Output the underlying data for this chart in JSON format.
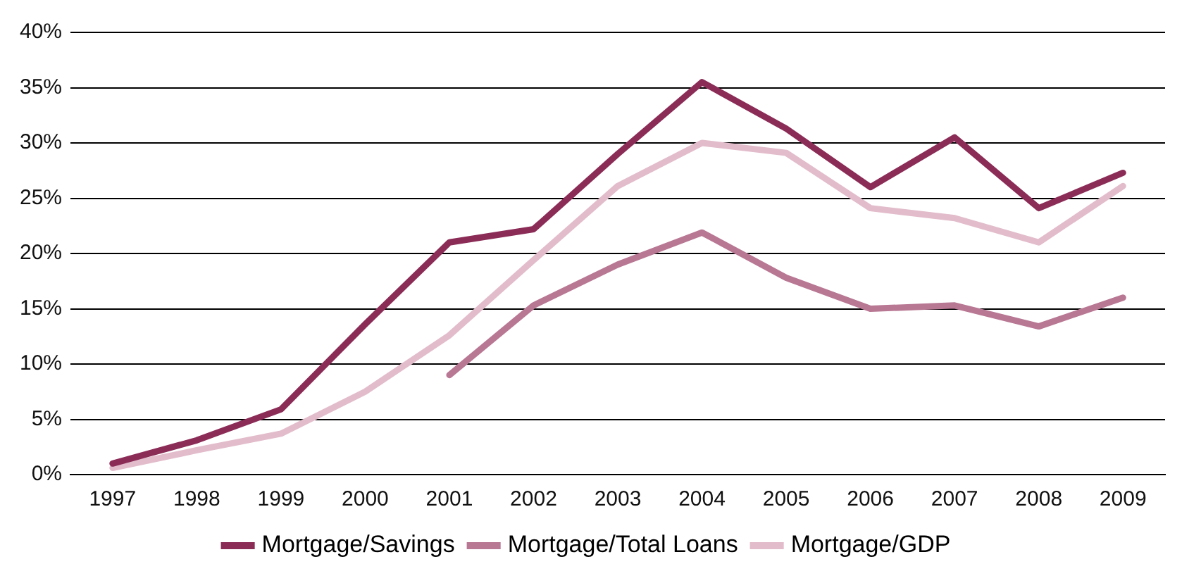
{
  "chart_data": {
    "type": "line",
    "categories": [
      "1997",
      "1998",
      "1999",
      "2000",
      "2001",
      "2002",
      "2003",
      "2004",
      "2005",
      "2006",
      "2007",
      "2008",
      "2009"
    ],
    "series": [
      {
        "name": "Mortgage/Savings",
        "color": "#8b2c57",
        "values": [
          1.0,
          3.1,
          5.9,
          13.6,
          21,
          22.2,
          29,
          35.5,
          31.3,
          26,
          30.5,
          24.1,
          27.3
        ]
      },
      {
        "name": "Mortgage/Total Loans",
        "color": "#b87793",
        "values": [
          null,
          null,
          null,
          null,
          9.0,
          15.3,
          19,
          21.9,
          17.8,
          15,
          15.3,
          13.4,
          16
        ]
      },
      {
        "name": "Mortgage/GDP",
        "color": "#e2bccb",
        "values": [
          0.6,
          2.2,
          3.7,
          7.5,
          12.6,
          19.4,
          26.1,
          30,
          29.1,
          24.1,
          23.2,
          21,
          26.1
        ]
      }
    ],
    "ylim": [
      0,
      40
    ],
    "yticks": [
      {
        "value": 0,
        "label": "0%"
      },
      {
        "value": 5,
        "label": "5%"
      },
      {
        "value": 10,
        "label": "10%"
      },
      {
        "value": 15,
        "label": "15%"
      },
      {
        "value": 20,
        "label": "20%"
      },
      {
        "value": 25,
        "label": "25%"
      },
      {
        "value": 30,
        "label": "30%"
      },
      {
        "value": 35,
        "label": "35%"
      },
      {
        "value": 40,
        "label": "40%"
      }
    ],
    "grid": "y",
    "legend": "bottom",
    "marker": "none",
    "line_style": "solid"
  }
}
